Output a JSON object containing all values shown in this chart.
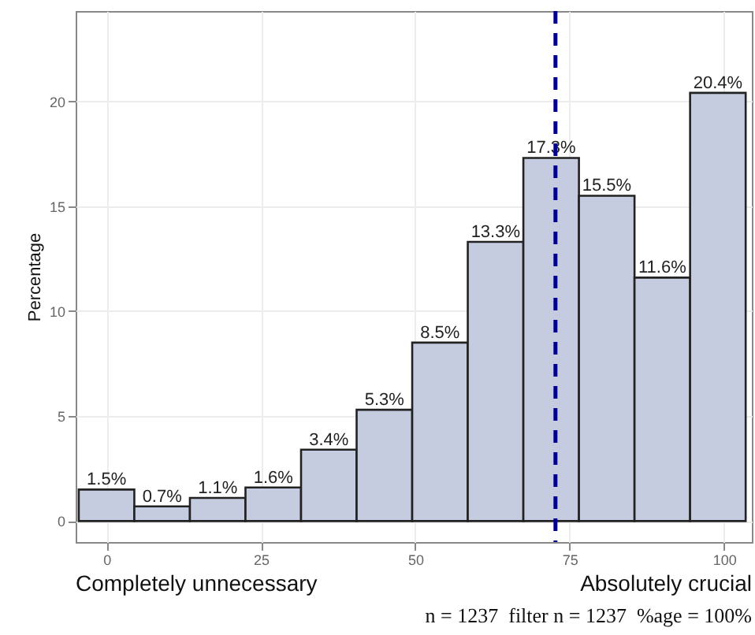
{
  "chart_data": {
    "type": "histogram",
    "ylabel": "Percentage",
    "bins": [
      -4.5,
      4.5,
      13.5,
      22.5,
      31.5,
      40.5,
      49.5,
      58.5,
      67.5,
      76.5,
      85.5,
      94.5,
      103.5
    ],
    "values": [
      1.5,
      0.7,
      1.1,
      1.6,
      3.4,
      5.3,
      8.5,
      13.3,
      17.3,
      15.5,
      11.6,
      20.4
    ],
    "value_labels": [
      "1.5%",
      "0.7%",
      "1.1%",
      "1.6%",
      "3.4%",
      "5.3%",
      "8.5%",
      "13.3%",
      "17.3%",
      "15.5%",
      "11.6%",
      "20.4%"
    ],
    "color": "#c5cce0",
    "xlim": [
      -5,
      104.5
    ],
    "xticks": [
      0,
      25,
      50,
      75,
      100
    ],
    "ylim": [
      -1,
      24.3
    ],
    "yticks": [
      0,
      5,
      10,
      15,
      20
    ],
    "ref_lines": [
      {
        "axis": "x",
        "value": 72.7,
        "color": "#00008b",
        "line_style": "dashed"
      }
    ],
    "annotations": [
      "Completely unnecessary",
      "Absolutely crucial",
      "n = 1237  filter n = 1237  %age = 100%"
    ],
    "grid": true
  }
}
